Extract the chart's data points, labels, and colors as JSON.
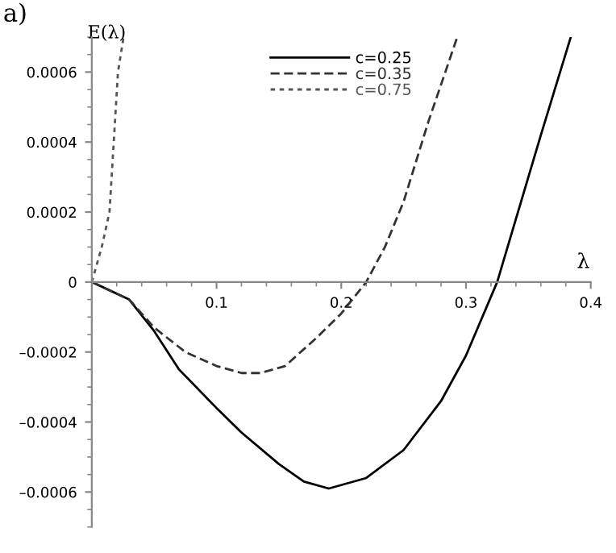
{
  "chart_data": {
    "type": "line",
    "title": "a)",
    "xlabel": "λ",
    "ylabel": "E(λ)",
    "xlim": [
      0,
      0.4
    ],
    "ylim": [
      -0.0007,
      0.0007
    ],
    "xticks": [
      0.1,
      0.2,
      0.3,
      0.4
    ],
    "yticks": [
      {
        "value": -0.0006,
        "label": "–0.0006"
      },
      {
        "value": -0.0004,
        "label": "–0.0004"
      },
      {
        "value": -0.0002,
        "label": "–0.0002"
      },
      0,
      0.0002,
      0.0004,
      0.0006
    ],
    "legend": "top",
    "grid": false,
    "series": [
      {
        "name": "c=0.25",
        "color": "#000000",
        "line_style": "solid",
        "x": [
          0,
          0.03,
          0.05,
          0.07,
          0.1,
          0.12,
          0.15,
          0.17,
          0.19,
          0.22,
          0.25,
          0.28,
          0.3,
          0.325,
          0.35,
          0.36,
          0.384
        ],
        "values": [
          0,
          -5e-05,
          -0.00014,
          -0.00025,
          -0.00036,
          -0.00043,
          -0.00052,
          -0.00057,
          -0.00059,
          -0.00056,
          -0.00048,
          -0.00034,
          -0.00021,
          0,
          0.0003,
          0.00042,
          0.0007
        ]
      },
      {
        "name": "c=0.35",
        "color": "#333333",
        "line_style": "dashed",
        "x": [
          0,
          0.03,
          0.05,
          0.075,
          0.1,
          0.12,
          0.135,
          0.155,
          0.18,
          0.2,
          0.22,
          0.235,
          0.25,
          0.27,
          0.293
        ],
        "values": [
          0,
          -5e-05,
          -0.00013,
          -0.0002,
          -0.00024,
          -0.00026,
          -0.00026,
          -0.00024,
          -0.00016,
          -9e-05,
          0,
          0.0001,
          0.00023,
          0.00046,
          0.0007
        ]
      },
      {
        "name": "c=0.75",
        "color": "#555555",
        "line_style": "dotted",
        "x": [
          0,
          0.008,
          0.0142,
          0.0176,
          0.021,
          0.0255
        ],
        "values": [
          0,
          0.0001,
          0.0002,
          0.0004,
          0.0006,
          0.0007
        ]
      }
    ]
  }
}
